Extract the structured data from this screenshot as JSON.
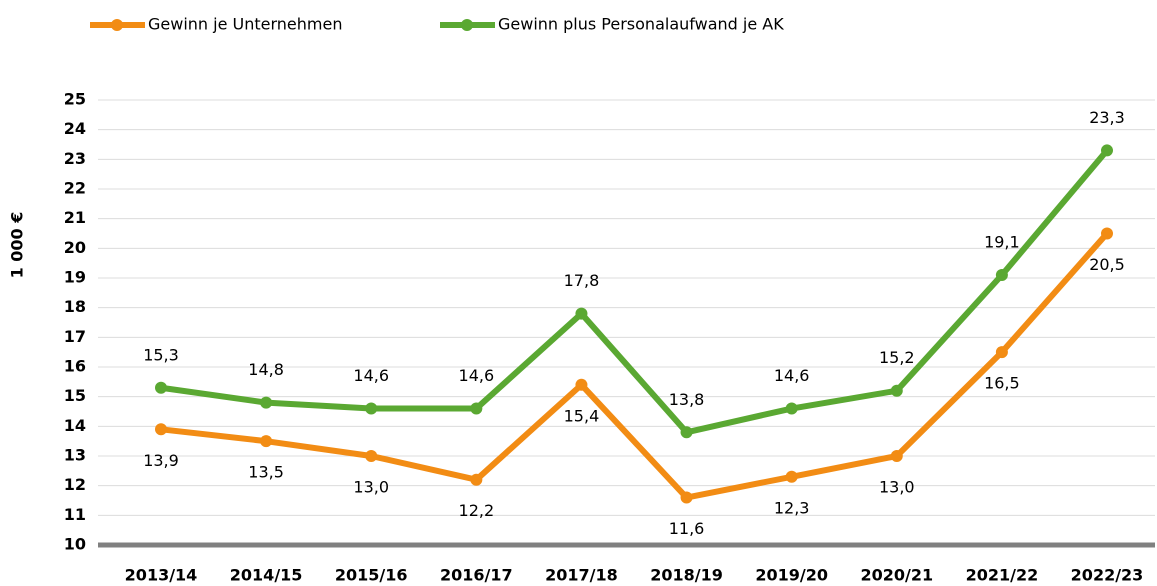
{
  "chart_data": {
    "type": "line",
    "ylabel": "1 000 €",
    "categories": [
      "2013/14",
      "2014/15",
      "2015/16",
      "2016/17",
      "2017/18",
      "2018/19",
      "2019/20",
      "2020/21",
      "2021/22",
      "2022/23"
    ],
    "series": [
      {
        "name": "Gewinn je Unternehmen",
        "color": "#f28c14",
        "values": [
          13.9,
          13.5,
          13.0,
          12.2,
          15.4,
          11.6,
          12.3,
          13.0,
          16.5,
          20.5
        ],
        "value_labels": [
          "13,9",
          "13,5",
          "13,0",
          "12,2",
          "15,4",
          "11,6",
          "12,3",
          "13,0",
          "16,5",
          "20,5"
        ]
      },
      {
        "name": "Gewinn plus Personalaufwand je AK",
        "color": "#5aa832",
        "values": [
          15.3,
          14.8,
          14.6,
          14.6,
          17.8,
          13.8,
          14.6,
          15.2,
          19.1,
          23.3
        ],
        "value_labels": [
          "15,3",
          "14,8",
          "14,6",
          "14,6",
          "17,8",
          "13,8",
          "14,6",
          "15,2",
          "19,1",
          "23,3"
        ]
      }
    ],
    "ylim": [
      10,
      25
    ],
    "yticks": [
      10,
      11,
      12,
      13,
      14,
      15,
      16,
      17,
      18,
      19,
      20,
      21,
      22,
      23,
      24,
      25
    ],
    "grid": true,
    "legend": "top"
  }
}
